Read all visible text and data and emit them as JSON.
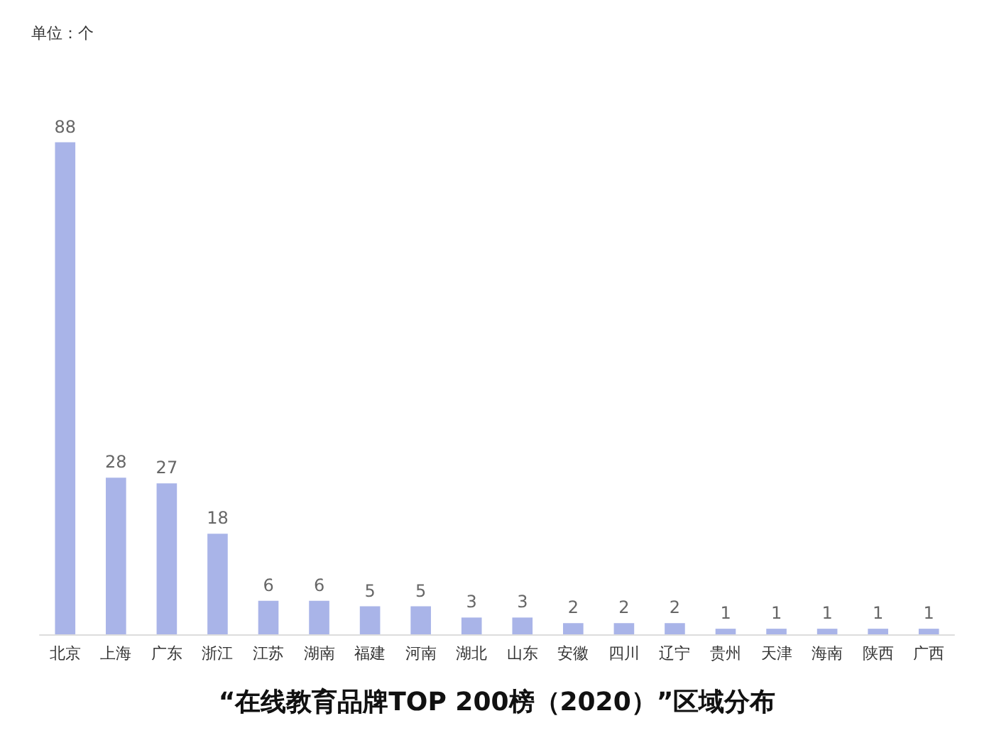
{
  "chart_data": {
    "type": "bar",
    "title": "“在线教育品牌TOP 200榜（2020）”区域分布",
    "annotations": [
      "单位：个"
    ],
    "categories": [
      "北京",
      "上海",
      "广东",
      "浙江",
      "江苏",
      "湖南",
      "福建",
      "河南",
      "湖北",
      "山东",
      "安徽",
      "四川",
      "辽宁",
      "贵州",
      "天津",
      "海南",
      "陕西",
      "广西"
    ],
    "values": [
      88,
      28,
      27,
      18,
      6,
      6,
      5,
      5,
      3,
      3,
      2,
      2,
      2,
      1,
      1,
      1,
      1,
      1
    ],
    "color": "#8c9be0",
    "data_labels": true
  }
}
